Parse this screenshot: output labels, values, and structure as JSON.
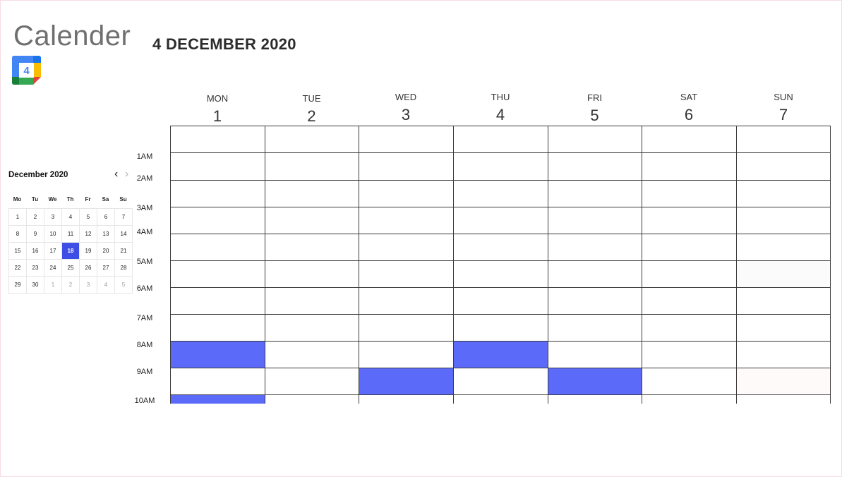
{
  "app": {
    "title": "Calender",
    "date_title": "4 DECEMBER 2020",
    "logo_number": "4"
  },
  "colors": {
    "event": "#5b6af8",
    "selected": "#3d4ee6"
  },
  "mini_calendar": {
    "month_label": "December 2020",
    "prev_icon": "chevron-left-icon",
    "next_icon": "chevron-right-icon",
    "dows": [
      "Mo",
      "Tu",
      "We",
      "Th",
      "Fr",
      "Sa",
      "Su"
    ],
    "days": [
      {
        "d": "1"
      },
      {
        "d": "2"
      },
      {
        "d": "3"
      },
      {
        "d": "4"
      },
      {
        "d": "5"
      },
      {
        "d": "6"
      },
      {
        "d": "7"
      },
      {
        "d": "8"
      },
      {
        "d": "9"
      },
      {
        "d": "10"
      },
      {
        "d": "11"
      },
      {
        "d": "12"
      },
      {
        "d": "13"
      },
      {
        "d": "14"
      },
      {
        "d": "15"
      },
      {
        "d": "16"
      },
      {
        "d": "17"
      },
      {
        "d": "18",
        "selected": true
      },
      {
        "d": "19"
      },
      {
        "d": "20"
      },
      {
        "d": "21"
      },
      {
        "d": "22"
      },
      {
        "d": "23"
      },
      {
        "d": "24"
      },
      {
        "d": "25"
      },
      {
        "d": "26"
      },
      {
        "d": "27"
      },
      {
        "d": "28"
      },
      {
        "d": "29"
      },
      {
        "d": "30"
      },
      {
        "d": "1",
        "dim": true
      },
      {
        "d": "2",
        "dim": true
      },
      {
        "d": "3",
        "dim": true
      },
      {
        "d": "4",
        "dim": true
      },
      {
        "d": "5",
        "dim": true
      }
    ]
  },
  "week": {
    "days": [
      {
        "name": "MON",
        "num": "1"
      },
      {
        "name": "TUE",
        "num": "2"
      },
      {
        "name": "WED",
        "num": "3"
      },
      {
        "name": "THU",
        "num": "4"
      },
      {
        "name": "FRI",
        "num": "5"
      },
      {
        "name": "SAT",
        "num": "6"
      },
      {
        "name": "SUN",
        "num": "7"
      }
    ],
    "time_labels": [
      "1AM",
      "2AM",
      "3AM",
      "4AM",
      "5AM",
      "6AM",
      "7AM",
      "8AM",
      "9AM",
      "10AM"
    ],
    "events": [
      {
        "day": 0,
        "row": 8
      },
      {
        "day": 3,
        "row": 8
      },
      {
        "day": 2,
        "row": 9
      },
      {
        "day": 4,
        "row": 9
      },
      {
        "day": 0,
        "row": 10
      }
    ]
  }
}
